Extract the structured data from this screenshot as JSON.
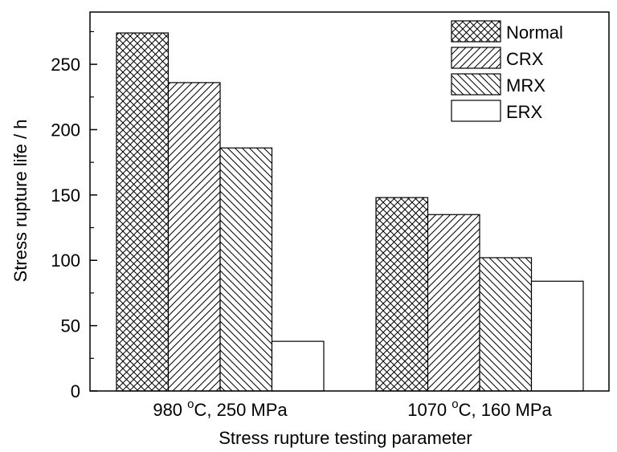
{
  "chart_data": {
    "type": "bar",
    "title": "",
    "xlabel": "Stress rupture testing parameter",
    "ylabel": "Stress rupture life / h",
    "ylim": [
      0,
      290
    ],
    "yticks": [
      0,
      50,
      100,
      150,
      200,
      250
    ],
    "categories": [
      {
        "pre": "980 ",
        "sup": "o",
        "post": "C, 250 MPa"
      },
      {
        "pre": "1070 ",
        "sup": "o",
        "post": "C, 160 MPa"
      }
    ],
    "series": [
      {
        "name": "Normal",
        "pattern": "crosshatch",
        "values": [
          274,
          148
        ]
      },
      {
        "name": "CRX",
        "pattern": "forward-diagonal",
        "values": [
          236,
          135
        ]
      },
      {
        "name": "MRX",
        "pattern": "back-diagonal",
        "values": [
          186,
          102
        ]
      },
      {
        "name": "ERX",
        "pattern": "none",
        "values": [
          38,
          84
        ]
      }
    ],
    "legend_position": "top-right",
    "grid": false,
    "colors": {
      "stroke": "#000000",
      "fill": "#ffffff"
    }
  }
}
